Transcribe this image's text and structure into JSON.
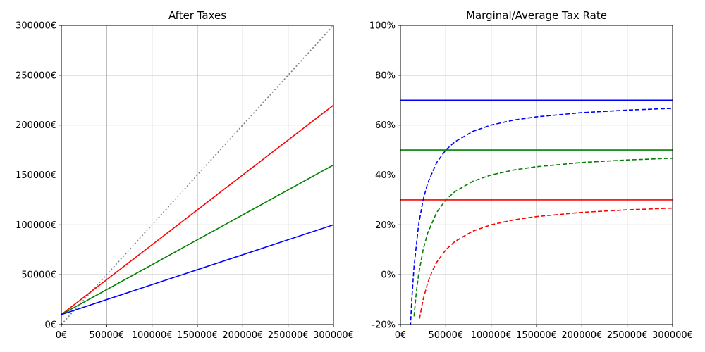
{
  "chart_data": [
    {
      "type": "line",
      "title": "After Taxes",
      "xlabel": "",
      "ylabel": "",
      "xlim": [
        0,
        300000
      ],
      "ylim": [
        0,
        300000
      ],
      "grid": true,
      "xticks": [
        0,
        50000,
        100000,
        150000,
        200000,
        250000,
        300000
      ],
      "xtick_labels": [
        "0€",
        "50000€",
        "100000€",
        "150000€",
        "200000€",
        "250000€",
        "300000€"
      ],
      "yticks": [
        0,
        50000,
        100000,
        150000,
        200000,
        250000,
        300000
      ],
      "ytick_labels": [
        "0€",
        "50000€",
        "100000€",
        "150000€",
        "200000€",
        "250000€",
        "300000€"
      ],
      "series": [
        {
          "color": "#808080",
          "style": "dotted",
          "x": [
            0,
            300000
          ],
          "y": [
            0,
            300000
          ]
        },
        {
          "color": "#ff0000",
          "style": "solid",
          "x": [
            0,
            300000
          ],
          "y": [
            10000,
            220000
          ]
        },
        {
          "color": "#008000",
          "style": "solid",
          "x": [
            0,
            300000
          ],
          "y": [
            10000,
            160000
          ]
        },
        {
          "color": "#0000ff",
          "style": "solid",
          "x": [
            0,
            300000
          ],
          "y": [
            10000,
            100000
          ]
        }
      ]
    },
    {
      "type": "line",
      "title": "Marginal/Average Tax Rate",
      "xlabel": "",
      "ylabel": "",
      "xlim": [
        0,
        300000
      ],
      "ylim": [
        -20,
        100
      ],
      "grid": true,
      "xticks": [
        0,
        50000,
        100000,
        150000,
        200000,
        250000,
        300000
      ],
      "xtick_labels": [
        "0€",
        "50000€",
        "100000€",
        "150000€",
        "200000€",
        "250000€",
        "300000€"
      ],
      "yticks": [
        -20,
        0,
        20,
        40,
        60,
        80,
        100
      ],
      "ytick_labels": [
        "-20%",
        "0%",
        "20%",
        "40%",
        "60%",
        "80%",
        "100%"
      ],
      "series": [
        {
          "color": "#0000ff",
          "style": "solid",
          "x": [
            0,
            300000
          ],
          "y": [
            70,
            70
          ]
        },
        {
          "color": "#008000",
          "style": "solid",
          "x": [
            0,
            300000
          ],
          "y": [
            50,
            50
          ]
        },
        {
          "color": "#ff0000",
          "style": "solid",
          "x": [
            0,
            300000
          ],
          "y": [
            30,
            30
          ]
        },
        {
          "color": "#0000ff",
          "style": "dashed",
          "x": [
            11000,
            12500,
            15000,
            20000,
            25000,
            30000,
            40000,
            50000,
            60000,
            80000,
            100000,
            125000,
            150000,
            200000,
            250000,
            300000
          ],
          "y": [
            -20.9,
            -10,
            3.3,
            20,
            30,
            36.7,
            45,
            50,
            53.3,
            57.5,
            60,
            62,
            63.3,
            65,
            66,
            66.7
          ]
        },
        {
          "color": "#008000",
          "style": "dashed",
          "x": [
            15000,
            17500,
            20000,
            25000,
            30000,
            40000,
            50000,
            60000,
            80000,
            100000,
            125000,
            150000,
            200000,
            250000,
            300000
          ],
          "y": [
            -16.7,
            -7.1,
            0,
            10,
            16.7,
            25,
            30,
            33.3,
            37.5,
            40,
            42,
            43.3,
            45,
            46,
            46.7
          ]
        },
        {
          "color": "#ff0000",
          "style": "dashed",
          "x": [
            21000,
            25000,
            30000,
            35000,
            40000,
            50000,
            60000,
            80000,
            100000,
            125000,
            150000,
            200000,
            250000,
            300000
          ],
          "y": [
            -17.6,
            -10,
            -3.3,
            1.4,
            5,
            10,
            13.3,
            17.5,
            20,
            22,
            23.3,
            25,
            26,
            26.7
          ]
        }
      ]
    }
  ]
}
